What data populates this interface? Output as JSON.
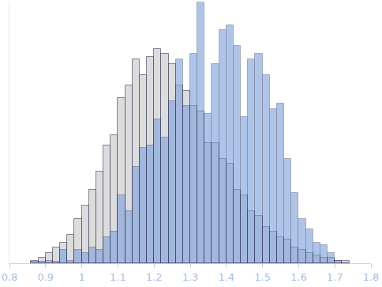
{
  "chart_data": {
    "type": "histogram",
    "bins": [
      0.86,
      0.88,
      0.9,
      0.92,
      0.94,
      0.96,
      0.98,
      1.0,
      1.02,
      1.04,
      1.06,
      1.08,
      1.1,
      1.12,
      1.14,
      1.16,
      1.18,
      1.2,
      1.22,
      1.24,
      1.26,
      1.28,
      1.3,
      1.32,
      1.34,
      1.36,
      1.38,
      1.4,
      1.42,
      1.44,
      1.46,
      1.48,
      1.5,
      1.52,
      1.54,
      1.56,
      1.58,
      1.6,
      1.62,
      1.64,
      1.66,
      1.68,
      1.7,
      1.72,
      1.74
    ],
    "series": [
      {
        "color": "#dcdcdc",
        "values": [
          1,
          2,
          4,
          6,
          8,
          11,
          17,
          22,
          28,
          35,
          45,
          49,
          63,
          68,
          78,
          72,
          79,
          82,
          80,
          76,
          68,
          66,
          60,
          58,
          46,
          46,
          40,
          38,
          28,
          26,
          20,
          18,
          14,
          12,
          10,
          9,
          6,
          5,
          4,
          3,
          2,
          2,
          1,
          1
        ]
      },
      {
        "color": "#7aa0dc",
        "values": [
          0.5,
          0.5,
          1,
          0.5,
          5,
          1,
          5,
          4,
          6,
          5,
          10,
          12,
          26,
          20,
          37,
          44,
          45,
          55,
          48,
          62,
          78,
          60,
          80,
          100,
          57,
          76,
          89,
          91,
          83,
          56,
          78,
          80,
          72,
          59,
          61,
          40,
          27,
          17,
          13,
          8,
          7,
          4,
          1,
          0
        ]
      }
    ],
    "xlim": [
      0.8,
      1.8
    ],
    "xticks": [
      0.8,
      0.9,
      1,
      1.1,
      1.2,
      1.3,
      1.4,
      1.5,
      1.6,
      1.7,
      1.8
    ],
    "ylim": [
      0,
      100
    ],
    "yticks": [],
    "grid": false,
    "tick_labels": "x"
  }
}
